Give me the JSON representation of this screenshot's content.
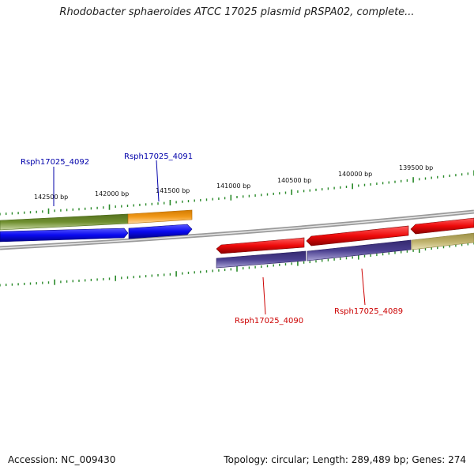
{
  "title": "Rhodobacter sphaeroides ATCC 17025 plasmid pRSPA02, complete...",
  "footer": {
    "accession": "Accession: NC_009430",
    "summary": "Topology: circular; Length: 289,489 bp; Genes: 274"
  },
  "scale_labels": [
    "142500 bp",
    "142000 bp",
    "141500 bp",
    "141000 bp",
    "140500 bp",
    "140000 bp",
    "139500 bp"
  ],
  "gene_labels": [
    {
      "text": "Rsph17025_4092",
      "strand": "forward"
    },
    {
      "text": "Rsph17025_4091",
      "strand": "forward"
    },
    {
      "text": "Rsph17025_4090",
      "strand": "reverse"
    },
    {
      "text": "Rsph17025_4089",
      "strand": "reverse"
    }
  ],
  "colors": {
    "forward_gene": "#0a0af0",
    "reverse_gene": "#ee0a0a",
    "forward_label": "#0000aa",
    "reverse_label": "#cc0000",
    "cds_green": "#6f8f2f",
    "cds_orange": "#f29a1a",
    "cds_purple": "#4a3f8f",
    "cds_khaki": "#bdb06a",
    "backbone": "#8a8a8a",
    "tick": "#2a8a2a"
  }
}
